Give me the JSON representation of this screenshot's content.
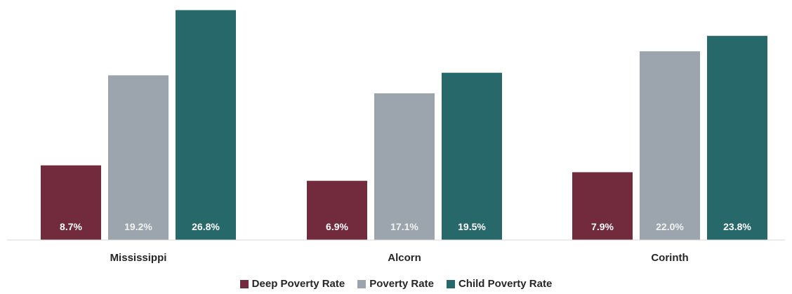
{
  "chart_data": {
    "type": "bar",
    "categories": [
      "Mississippi",
      "Alcorn",
      "Corinth"
    ],
    "series": [
      {
        "name": "Deep Poverty Rate",
        "color": "#722a3d",
        "values": [
          8.7,
          6.9,
          7.9
        ],
        "labels": [
          "8.7%",
          "6.9%",
          "7.9%"
        ]
      },
      {
        "name": "Poverty Rate",
        "color": "#9ca5ad",
        "values": [
          19.2,
          17.1,
          22.0
        ],
        "labels": [
          "19.2%",
          "17.1%",
          "22.0%"
        ]
      },
      {
        "name": "Child Poverty Rate",
        "color": "#27686b",
        "values": [
          26.8,
          19.5,
          23.8
        ],
        "labels": [
          "26.8%",
          "19.5%",
          "23.8%"
        ]
      }
    ],
    "ylim": [
      0,
      27
    ],
    "grid": false,
    "legend_position": "bottom"
  }
}
